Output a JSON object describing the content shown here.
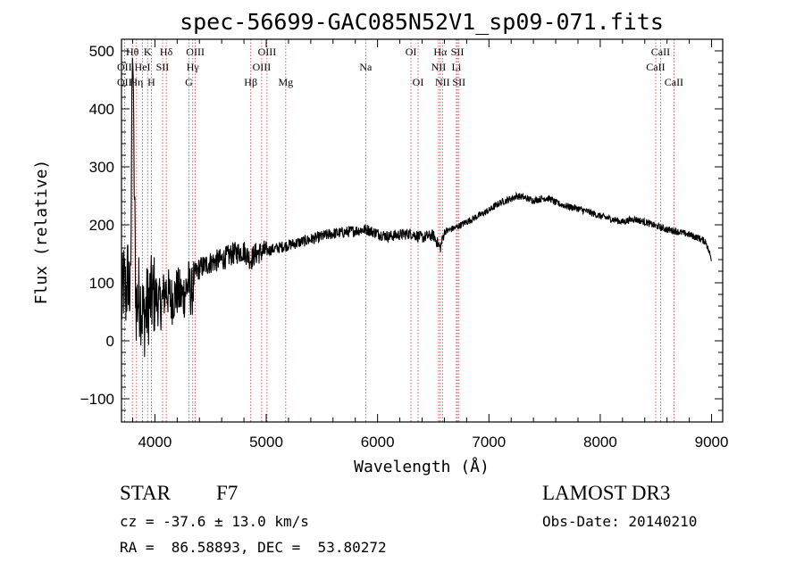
{
  "chart_data": {
    "type": "line",
    "title": "spec-56699-GAC085N52V1_sp09-071.fits",
    "xlabel": "Wavelength (Å)",
    "ylabel": "Flux (relative)",
    "xlim": [
      3700,
      9100
    ],
    "ylim": [
      -140,
      520
    ],
    "x_ticks": [
      4000,
      5000,
      6000,
      7000,
      8000,
      9000
    ],
    "y_ticks": [
      -100,
      0,
      100,
      200,
      300,
      400,
      500
    ],
    "grid": false,
    "spectrum": {
      "name": "flux",
      "x": [
        3700,
        3720,
        3740,
        3760,
        3780,
        3800,
        3830,
        3860,
        3900,
        3950,
        4000,
        4050,
        4100,
        4150,
        4200,
        4250,
        4300,
        4330,
        4360,
        4400,
        4500,
        4600,
        4700,
        4800,
        4861,
        4900,
        5000,
        5100,
        5200,
        5300,
        5400,
        5500,
        5600,
        5700,
        5800,
        5900,
        6000,
        6100,
        6200,
        6300,
        6400,
        6500,
        6563,
        6600,
        6700,
        6800,
        6900,
        7000,
        7100,
        7200,
        7250,
        7300,
        7400,
        7500,
        7550,
        7600,
        7700,
        7800,
        7900,
        8000,
        8100,
        8200,
        8300,
        8400,
        8500,
        8600,
        8700,
        8800,
        8900,
        8950,
        9000
      ],
      "y": [
        60,
        100,
        80,
        120,
        60,
        470,
        60,
        80,
        40,
        70,
        80,
        60,
        90,
        70,
        85,
        75,
        100,
        80,
        115,
        125,
        135,
        140,
        150,
        155,
        140,
        150,
        155,
        160,
        165,
        170,
        175,
        180,
        185,
        187,
        190,
        192,
        185,
        180,
        183,
        185,
        178,
        182,
        160,
        188,
        195,
        205,
        215,
        225,
        238,
        245,
        250,
        248,
        242,
        246,
        245,
        238,
        232,
        228,
        222,
        215,
        210,
        205,
        210,
        205,
        198,
        192,
        188,
        183,
        176,
        170,
        140
      ]
    },
    "line_markers": [
      {
        "label": "Hθ",
        "x": 3798,
        "row": 0
      },
      {
        "label": "K",
        "x": 3934,
        "row": 0
      },
      {
        "label": "Hδ",
        "x": 4102,
        "row": 0
      },
      {
        "label": "OIII",
        "x": 4363,
        "row": 0
      },
      {
        "label": "OIII",
        "x": 5007,
        "row": 0
      },
      {
        "label": "OI",
        "x": 6300,
        "row": 0
      },
      {
        "label": "Hα",
        "x": 6563,
        "row": 0
      },
      {
        "label": "SII",
        "x": 6717,
        "row": 0
      },
      {
        "label": "CaII",
        "x": 8542,
        "row": 0
      },
      {
        "label": "OII",
        "x": 3727,
        "row": 1
      },
      {
        "label": "HeI",
        "x": 3889,
        "row": 1
      },
      {
        "label": "SII",
        "x": 4069,
        "row": 1
      },
      {
        "label": "Hγ",
        "x": 4340,
        "row": 1
      },
      {
        "label": "OIII",
        "x": 4959,
        "row": 1
      },
      {
        "label": "Na",
        "x": 5893,
        "row": 1
      },
      {
        "label": "NII",
        "x": 6548,
        "row": 1
      },
      {
        "label": "Li",
        "x": 6708,
        "row": 1
      },
      {
        "label": "CaII",
        "x": 8498,
        "row": 1
      },
      {
        "label": "OII",
        "x": 3727,
        "row": 2
      },
      {
        "label": "Hη",
        "x": 3835,
        "row": 2
      },
      {
        "label": "H",
        "x": 3968,
        "row": 2
      },
      {
        "label": "G",
        "x": 4305,
        "row": 2
      },
      {
        "label": "Hβ",
        "x": 4861,
        "row": 2
      },
      {
        "label": "Mg",
        "x": 5175,
        "row": 2
      },
      {
        "label": "OI",
        "x": 6364,
        "row": 2
      },
      {
        "label": "NII",
        "x": 6583,
        "row": 2
      },
      {
        "label": "SII",
        "x": 6731,
        "row": 2
      },
      {
        "label": "CaII",
        "x": 8662,
        "row": 2
      }
    ]
  },
  "footer": {
    "object_class": "STAR",
    "subclass": "F7",
    "survey": "LAMOST DR3",
    "redshift": "cz = -37.6 ± 13.0 km/s",
    "obs_date": "Obs-Date: 20140210",
    "coords": "RA =  86.58893, DEC =  53.80272"
  },
  "colors": {
    "line_marker": "#cc3333",
    "spectrum": "#000000",
    "axes": "#000000"
  }
}
